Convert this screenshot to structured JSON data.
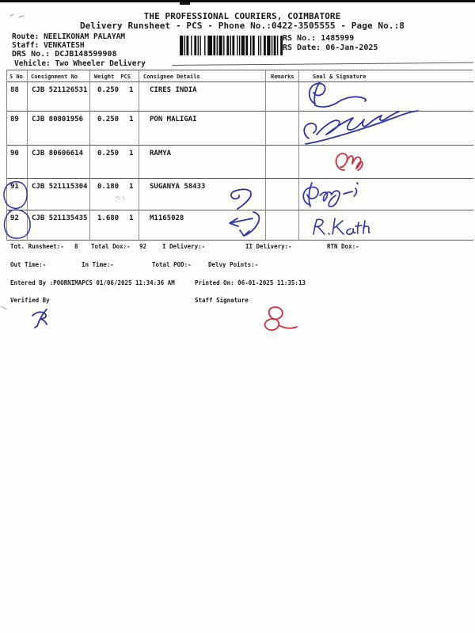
{
  "header": {
    "company": "THE PROFESSIONAL COURIERS, COIMBATORE",
    "subtitle": "Delivery Runsheet - PCS - Phone No.:0422-3505555 - Page No.:8",
    "route_label": "Route:",
    "route": "NEELIKONAM PALAYAM",
    "staff_label": "Staff:",
    "staff": "VENKATESH",
    "drs_label": "DRS No.:",
    "drs_no": "DCJB148599908",
    "vehicle_label": "Vehicle:",
    "vehicle": "Two Wheeler Delivery",
    "rs_no_label": "RS No.:",
    "rs_no": "1485999",
    "rs_date_label": "RS Date:",
    "rs_date": "06-Jan-2025",
    "barcode": {
      "kind": "code128-barcode",
      "pattern": [
        3,
        1,
        1,
        1,
        2,
        2,
        1,
        2,
        2,
        1,
        1,
        1,
        1,
        3,
        1,
        2,
        4,
        1,
        2,
        1,
        1,
        1,
        3,
        1,
        1,
        2,
        2,
        1,
        1,
        1,
        2,
        2,
        1,
        1,
        1,
        1,
        3,
        1,
        2,
        2,
        1,
        1,
        2,
        3,
        1,
        1,
        1,
        2,
        2,
        1,
        3,
        1,
        1,
        1,
        2,
        1,
        1,
        2,
        2
      ]
    }
  },
  "table": {
    "header": {
      "s_no": "S No",
      "consignment": "Consignment No",
      "weight": "Weight",
      "pcs": "PCS",
      "consignee": "Consignee Details",
      "remarks": "Remarks",
      "seal": "Seal & Signature"
    },
    "rows": [
      {
        "s_no": "88",
        "consignment": "CJB 521126531",
        "weight": "0.250",
        "pcs": "1",
        "consignee": "CIRES INDIA",
        "remarks": "",
        "seal_ink": "blue-ink-flourish-signature"
      },
      {
        "s_no": "89",
        "consignment": "CJB 80801956",
        "weight": "0.250",
        "pcs": "1",
        "consignee": "PON MALIGAI",
        "remarks": "",
        "seal_ink": "blue-ink-sweeping-signature"
      },
      {
        "s_no": "90",
        "consignment": "CJB 80606614",
        "weight": "0.250",
        "pcs": "1",
        "consignee": "RAMYA",
        "remarks": "",
        "seal_ink": "red-ink-initials"
      },
      {
        "s_no": "91",
        "consignment": "CJB 521115304",
        "weight": "0.180",
        "pcs": "1",
        "consignee": "SUGANYA 58433",
        "remarks": "",
        "seal_ink": "blue-ink-signature",
        "annotations": "blue-circle-on-s-no, blue-pen-arrow"
      },
      {
        "s_no": "92",
        "consignment": "CJB 521135435",
        "weight": "1.680",
        "pcs": "1",
        "consignee": "M1165028",
        "remarks": "",
        "seal_ink": "blue-ink-name R. Keerth",
        "annotations": "blue-circle-on-s-no, blue-pen-arrow"
      }
    ]
  },
  "totals": {
    "runsheet_label": "Tot. Runsheet:-",
    "runsheet_value": "8",
    "total_dox_label": "Total Dox:-",
    "total_dox_value": "92",
    "i_delivery_label": "I Delivery:-",
    "ii_delivery_label": "II Delivery:-",
    "rtn_dox_label": "RTN Dox:-",
    "out_time_label": "Out Time:-",
    "in_time_label": "In Time:-",
    "total_pod_label": "Total POD:-",
    "delvy_points_label": "Delvy Points:-"
  },
  "footer": {
    "entered_by": "Entered By :POORNIMAPCS 01/06/2025 11:34:36 AM",
    "printed_on": "Printed On: 06-01-2025 11:35:13",
    "verified_by_label": "Verified By",
    "staff_signature_label": "Staff Signature",
    "verified_by_ink": "blue-ink-initial",
    "staff_signature_ink": "red-ink-initial"
  },
  "ink": {
    "blue": "#2c35a6",
    "red": "#c93140",
    "bar": "#0d0d0d"
  }
}
